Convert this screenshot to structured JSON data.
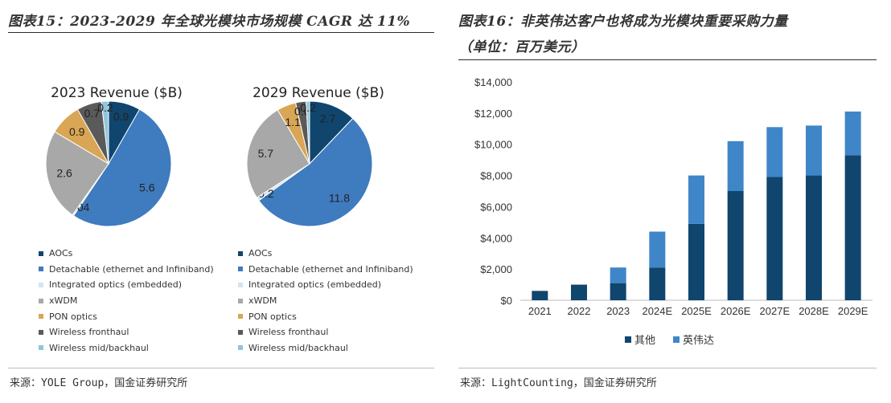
{
  "left_panel": {
    "figure_title": "图表15：2023-2029 年全球光模块市场规模 CAGR 达 11%",
    "source": "来源：YOLE Group，国金证券研究所"
  },
  "right_panel": {
    "figure_title_line1": "图表16：非英伟达客户也将成为光模块重要采购力量",
    "figure_title_line2": "（单位：百万美元）",
    "source": "来源：LightCounting，国金证券研究所"
  },
  "colors": {
    "AOCs": "#10456e",
    "Detachable": "#3f7bbf",
    "Integrated": "#d4e5f1",
    "xWDM": "#a8a8a8",
    "PON": "#d9a655",
    "WirelessFront": "#5a5a5a",
    "WirelessMid": "#8fc6dc",
    "nvidia": "#3f86c8",
    "others": "#10456e"
  },
  "chart_data": [
    {
      "type": "pie",
      "title": "2023 Revenue ($B)",
      "slices": [
        {
          "name": "AOCs",
          "value": 0.9,
          "label": "0.9"
        },
        {
          "name": "Detachable (ethernet and Infiniband)",
          "value": 5.6,
          "label": "5.6"
        },
        {
          "name": "Integrated optics (embedded)",
          "value": 0.04,
          "label": "0.04"
        },
        {
          "name": "xWDM",
          "value": 2.6,
          "label": "2.6"
        },
        {
          "name": "PON optics",
          "value": 0.9,
          "label": "0.9"
        },
        {
          "name": "Wireless fronthaul",
          "value": 0.7,
          "label": "0.7"
        },
        {
          "name": "Wireless mid/backhaul",
          "value": 0.2,
          "label": "0.2"
        }
      ],
      "legend": [
        "AOCs",
        "Detachable (ethernet and Infiniband)",
        "Integrated optics (embedded)",
        "xWDM",
        "PON optics",
        "Wireless fronthaul",
        "Wireless mid/backhaul"
      ]
    },
    {
      "type": "pie",
      "title": "2029 Revenue ($B)",
      "slices": [
        {
          "name": "AOCs",
          "value": 2.7,
          "label": "2.7"
        },
        {
          "name": "Detachable (ethernet and Infiniband)",
          "value": 11.8,
          "label": "11.8"
        },
        {
          "name": "Integrated optics (embedded)",
          "value": 0.2,
          "label": "0.2"
        },
        {
          "name": "xWDM",
          "value": 5.7,
          "label": "5.7"
        },
        {
          "name": "PON optics",
          "value": 1.1,
          "label": "1.1"
        },
        {
          "name": "Wireless fronthaul",
          "value": 0.6,
          "label": "0.6"
        },
        {
          "name": "Wireless mid/backhaul",
          "value": 0.2,
          "label": "0.2"
        }
      ],
      "legend": [
        "AOCs",
        "Detachable (ethernet and Infiniband)",
        "Integrated optics (embedded)",
        "xWDM",
        "PON optics",
        "Wireless fronthaul",
        "Wireless mid/backhaul"
      ]
    },
    {
      "type": "bar",
      "stacked": true,
      "categories": [
        "2021",
        "2022",
        "2023",
        "2024E",
        "2025E",
        "2026E",
        "2027E",
        "2028E",
        "2029E"
      ],
      "series": [
        {
          "name": "其他",
          "values": [
            600,
            1000,
            1100,
            2100,
            4900,
            7000,
            7900,
            8000,
            9300
          ]
        },
        {
          "name": "英伟达",
          "values": [
            0,
            0,
            1000,
            2300,
            3100,
            3200,
            3200,
            3200,
            2800
          ]
        }
      ],
      "ylim": [
        0,
        14000
      ],
      "yticks": [
        "$0",
        "$2,000",
        "$4,000",
        "$6,000",
        "$8,000",
        "$10,000",
        "$12,000",
        "$14,000"
      ],
      "legend": [
        "其他",
        "英伟达"
      ]
    }
  ]
}
